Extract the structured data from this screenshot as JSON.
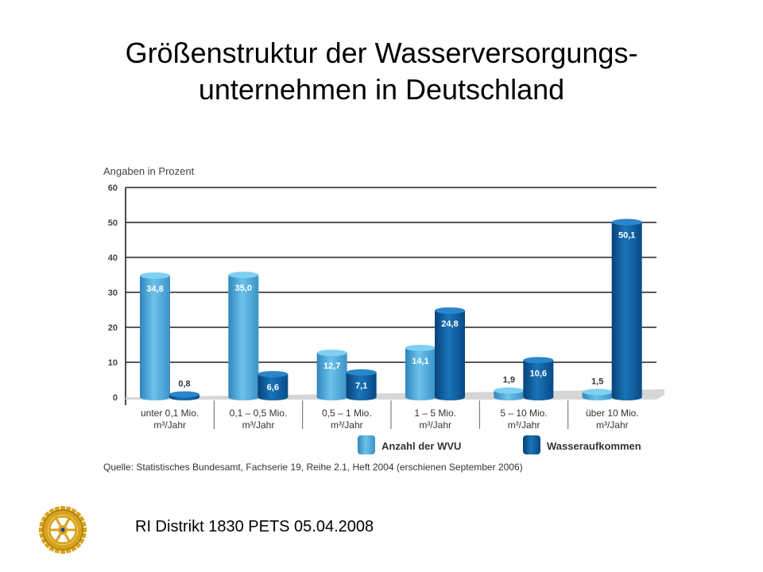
{
  "slide": {
    "title_line1": "Größenstruktur der Wasserversorgungs-",
    "title_line2": "unternehmen in Deutschland",
    "footer": "RI Distrikt 1830 PETS 05.04.2008",
    "logo_icon": "rotary-wheel-icon"
  },
  "chart_data": {
    "type": "bar",
    "title": "",
    "ylabel": "Angaben in Prozent",
    "xlabel": "",
    "ylim": [
      0,
      60
    ],
    "yticks": [
      0,
      10,
      20,
      30,
      40,
      50,
      60
    ],
    "grid": true,
    "legend_position": "bottom-right",
    "categories": [
      [
        "unter 0,1 Mio.",
        "m³/Jahr"
      ],
      [
        "0,1 – 0,5 Mio.",
        "m³/Jahr"
      ],
      [
        "0,5 – 1 Mio.",
        "m³/Jahr"
      ],
      [
        "1 – 5 Mio.",
        "m³/Jahr"
      ],
      [
        "5 – 10 Mio.",
        "m³/Jahr"
      ],
      [
        "über 10 Mio.",
        "m³/Jahr"
      ]
    ],
    "series": [
      {
        "name": "Anzahl der WVU",
        "color": "#4aa8d8",
        "values": [
          34.8,
          35.0,
          12.7,
          14.1,
          1.9,
          1.5
        ],
        "labels": [
          "34,8",
          "35,0",
          "12,7",
          "14,1",
          "1,9",
          "1,5"
        ]
      },
      {
        "name": "Wasseraufkommen",
        "color": "#0a5a9c",
        "values": [
          0.8,
          6.6,
          7.1,
          24.8,
          10.6,
          50.1
        ],
        "labels": [
          "0,8",
          "6,6",
          "7,1",
          "24,8",
          "10,6",
          "50,1"
        ]
      }
    ],
    "source": "Quelle: Statistisches Bundesamt, Fachserie 19, Reihe 2.1, Heft 2004 (erschienen September 2006)"
  }
}
